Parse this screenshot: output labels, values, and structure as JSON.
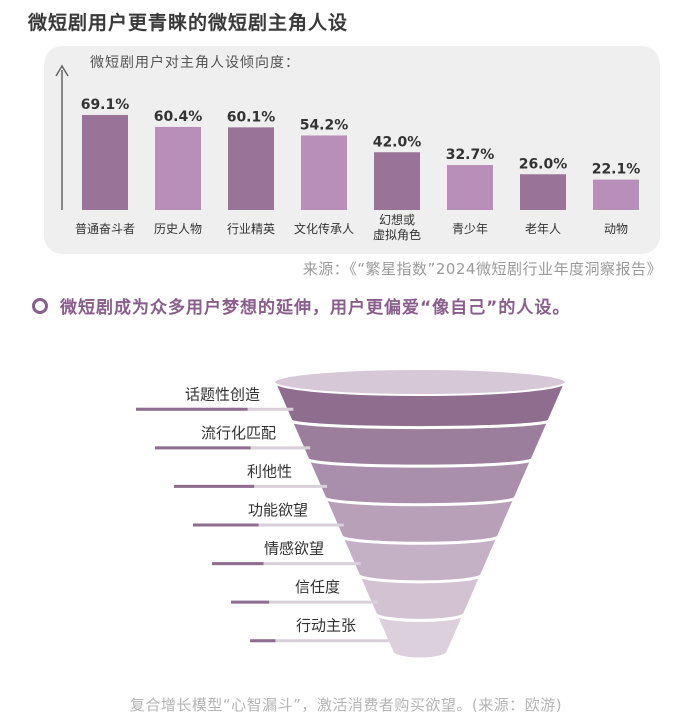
{
  "title": "微短剧用户更青睐的微短剧主角人设",
  "chart_data": {
    "type": "bar",
    "title": "微短剧用户对主角人设倾向度：",
    "categories": [
      "普通奋斗者",
      "历史人物",
      "行业精英",
      "文化传承人",
      "幻想或\n虚拟角色",
      "青少年",
      "老年人",
      "动物"
    ],
    "values": [
      69.1,
      60.4,
      60.1,
      54.2,
      42.0,
      32.7,
      26.0,
      22.1
    ],
    "value_labels": [
      "69.1%",
      "60.4%",
      "60.1%",
      "54.2%",
      "42.0%",
      "32.7%",
      "26.0%",
      "22.1%"
    ],
    "ylim": [
      0,
      80
    ],
    "colors": [
      "#9a7399",
      "#b78fb8"
    ]
  },
  "source1": "来源：《“繁星指数”2024微短剧行业年度洞察报告》",
  "highlight": "微短剧成为众多用户梦想的延伸，用户更偏爱“像自己”的人设。",
  "funnel": {
    "levels": [
      "话题性创造",
      "流行化匹配",
      "利他性",
      "功能欲望",
      "情感欲望",
      "信任度",
      "行动主张"
    ],
    "colors": [
      "#8e6d8f",
      "#9b7d9c",
      "#a98fab",
      "#b7a0b8",
      "#c4b1c5",
      "#d2c2d2",
      "#ddd0dd"
    ]
  },
  "caption": "复合增长模型“心智漏斗”，激活消费者购买欲望。(来源：欧游)"
}
